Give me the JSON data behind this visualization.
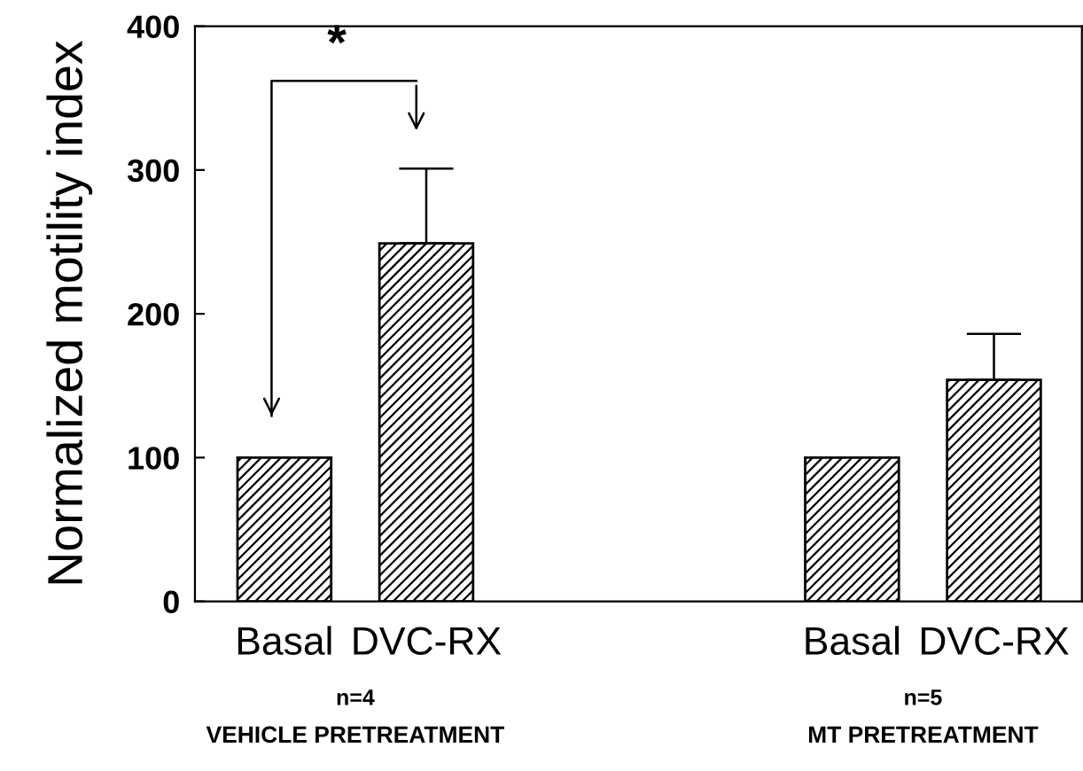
{
  "chart_data": {
    "type": "bar",
    "ylabel": "Normalized motility index",
    "categories": [
      "Basal",
      "DVC-RX",
      null,
      null,
      "Basal",
      "DVC-RX"
    ],
    "values": [
      100,
      249,
      null,
      null,
      100,
      154
    ],
    "errors": [
      null,
      [
        249,
        301
      ],
      null,
      null,
      null,
      [
        154,
        186
      ]
    ],
    "color": "#000000",
    "ylim": [
      0,
      400
    ],
    "yticks": [
      0,
      100,
      200,
      300,
      400
    ],
    "grid": false,
    "annotations": [
      "*",
      "n=4",
      "VEHICLE PRETREATMENT",
      "n=5",
      "MT PRETREATMENT"
    ]
  }
}
